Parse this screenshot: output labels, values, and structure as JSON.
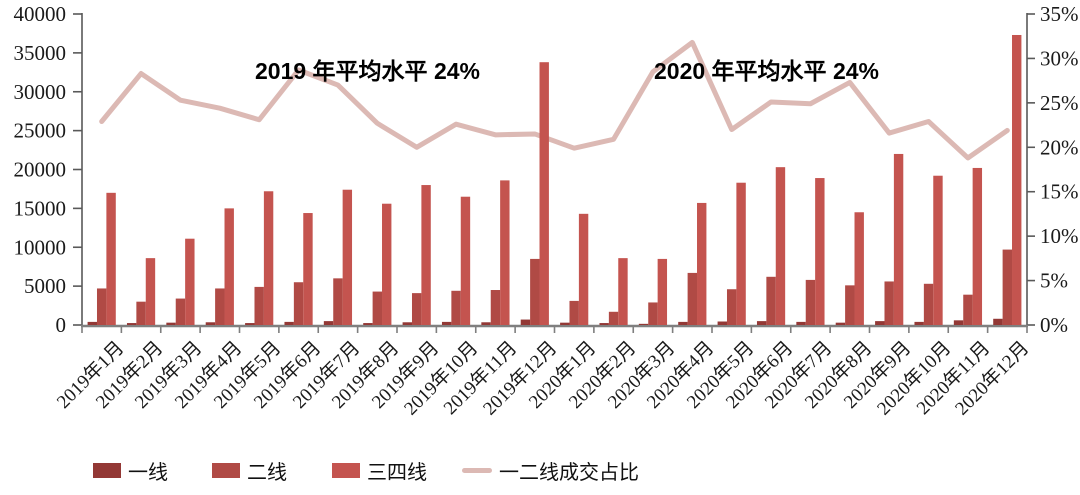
{
  "chart_data": {
    "type": "bar+line combo",
    "categories": [
      "2019年1月",
      "2019年2月",
      "2019年3月",
      "2019年4月",
      "2019年5月",
      "2019年6月",
      "2019年7月",
      "2019年8月",
      "2019年9月",
      "2019年10月",
      "2019年11月",
      "2019年12月",
      "2020年1月",
      "2020年2月",
      "2020年3月",
      "2020年4月",
      "2020年5月",
      "2020年6月",
      "2020年7月",
      "2020年8月",
      "2020年9月",
      "2020年10月",
      "2020年11月",
      "2020年12月"
    ],
    "series": [
      {
        "name": "一线",
        "type": "bar",
        "axis": "left",
        "color": "#933835",
        "values": [
          400,
          250,
          300,
          350,
          250,
          400,
          500,
          250,
          350,
          400,
          350,
          700,
          300,
          250,
          150,
          400,
          450,
          500,
          400,
          300,
          500,
          400,
          600,
          800
        ]
      },
      {
        "name": "二线",
        "type": "bar",
        "axis": "left",
        "color": "#b04a45",
        "values": [
          4700,
          3000,
          3400,
          4700,
          4900,
          5500,
          6000,
          4300,
          4100,
          4400,
          4500,
          8500,
          3100,
          1700,
          2900,
          6700,
          4600,
          6200,
          5800,
          5100,
          5600,
          5300,
          3900,
          9700
        ]
      },
      {
        "name": "三四线",
        "type": "bar",
        "axis": "left",
        "color": "#c4544f",
        "values": [
          17000,
          8600,
          11100,
          15000,
          17200,
          14400,
          17400,
          15600,
          18000,
          16500,
          18600,
          33800,
          14300,
          8600,
          8500,
          15700,
          18300,
          20300,
          18900,
          14500,
          22000,
          19200,
          20200,
          37300
        ]
      },
      {
        "name": "一二线成交占比",
        "type": "line",
        "axis": "right",
        "color": "#dcb9b4",
        "unit": "%",
        "values": [
          22.9,
          28.3,
          25.3,
          24.4,
          23.1,
          28.7,
          27.0,
          22.7,
          20.0,
          22.6,
          21.4,
          21.5,
          19.9,
          20.9,
          28.5,
          31.8,
          22.0,
          25.1,
          24.9,
          27.3,
          21.6,
          22.9,
          18.8,
          21.9
        ]
      }
    ],
    "left_axis": {
      "min": 0,
      "max": 40000,
      "step": 5000,
      "tick_labels": [
        "0",
        "5000",
        "10000",
        "15000",
        "20000",
        "25000",
        "30000",
        "35000",
        "40000"
      ]
    },
    "right_axis": {
      "min": 0,
      "max": 35,
      "step": 5,
      "tick_labels": [
        "0%",
        "5%",
        "10%",
        "15%",
        "20%",
        "25%",
        "30%",
        "35%"
      ]
    },
    "annotations": [
      {
        "text": "2019 年平均水平 24%"
      },
      {
        "text": "2020 年平均水平 24%"
      }
    ],
    "legend": [
      "一线",
      "二线",
      "三四线",
      "一二线成交占比"
    ],
    "grid": false,
    "legend_position": "bottom"
  },
  "colors": {
    "axis_line": "#595959",
    "x_axis_line": "#7f7f7f",
    "tick_text": "#1a1a1a"
  }
}
